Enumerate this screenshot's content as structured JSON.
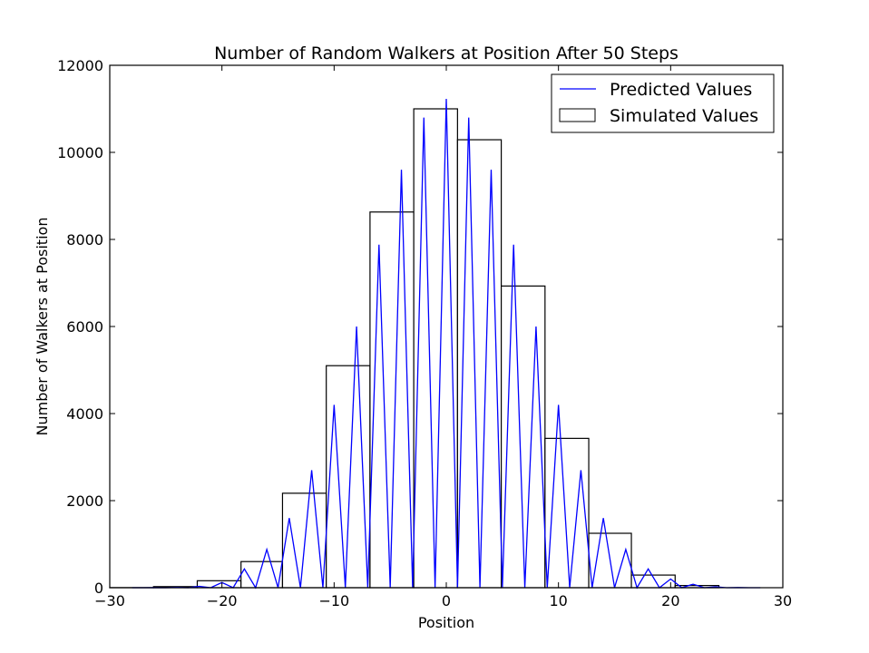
{
  "chart_data": {
    "type": "bar",
    "title": "Number of Random Walkers at Position After 50 Steps",
    "xlabel": "Position",
    "ylabel": "Number of Walkers at Position",
    "xlim": [
      -30,
      30
    ],
    "ylim": [
      0,
      12000
    ],
    "xticks": [
      "−30",
      "−20",
      "−10",
      "0",
      "10",
      "20",
      "30"
    ],
    "yticks": [
      "0",
      "2000",
      "4000",
      "6000",
      "8000",
      "10000",
      "12000"
    ],
    "grid": false,
    "legend_position": "top-right",
    "series": [
      {
        "name": "Predicted Values",
        "type": "line",
        "color": "#0000ff",
        "x": [
          -28,
          -27,
          -26,
          -25,
          -24,
          -23,
          -22,
          -21,
          -20,
          -19,
          -18,
          -17,
          -16,
          -15,
          -14,
          -13,
          -12,
          -11,
          -10,
          -9,
          -8,
          -7,
          -6,
          -5,
          -4,
          -3,
          -2,
          -1,
          0,
          1,
          2,
          3,
          4,
          5,
          6,
          7,
          8,
          9,
          10,
          11,
          12,
          13,
          14,
          15,
          16,
          17,
          18,
          19,
          20,
          21,
          22,
          23,
          24,
          25,
          26,
          27,
          28
        ],
        "y": [
          0,
          0,
          1,
          0,
          6,
          0,
          31,
          0,
          120,
          0,
          432,
          0,
          880,
          0,
          1600,
          0,
          2700,
          0,
          4200,
          0,
          6000,
          0,
          7880,
          0,
          9600,
          0,
          10800,
          0,
          11230,
          0,
          10800,
          0,
          9600,
          0,
          7880,
          0,
          6000,
          0,
          4200,
          0,
          2700,
          0,
          1600,
          0,
          880,
          0,
          432,
          0,
          200,
          0,
          80,
          0,
          20,
          0,
          4,
          0,
          0
        ]
      },
      {
        "name": "Simulated Values",
        "type": "histogram",
        "color": "#000000",
        "bins": [
          {
            "start": -30.0,
            "end": -26.1,
            "value": 2
          },
          {
            "start": -26.1,
            "end": -22.2,
            "value": 25
          },
          {
            "start": -22.2,
            "end": -18.3,
            "value": 160
          },
          {
            "start": -18.3,
            "end": -14.6,
            "value": 600
          },
          {
            "start": -14.6,
            "end": -10.7,
            "value": 2170
          },
          {
            "start": -10.7,
            "end": -6.8,
            "value": 5100
          },
          {
            "start": -6.8,
            "end": -2.9,
            "value": 8630
          },
          {
            "start": -2.9,
            "end": 1.0,
            "value": 11000
          },
          {
            "start": 1.0,
            "end": 4.9,
            "value": 10290
          },
          {
            "start": 4.9,
            "end": 8.8,
            "value": 6930
          },
          {
            "start": 8.8,
            "end": 12.7,
            "value": 3430
          },
          {
            "start": 12.7,
            "end": 16.5,
            "value": 1250
          },
          {
            "start": 16.5,
            "end": 20.4,
            "value": 290
          },
          {
            "start": 20.4,
            "end": 24.3,
            "value": 50
          }
        ]
      }
    ]
  }
}
